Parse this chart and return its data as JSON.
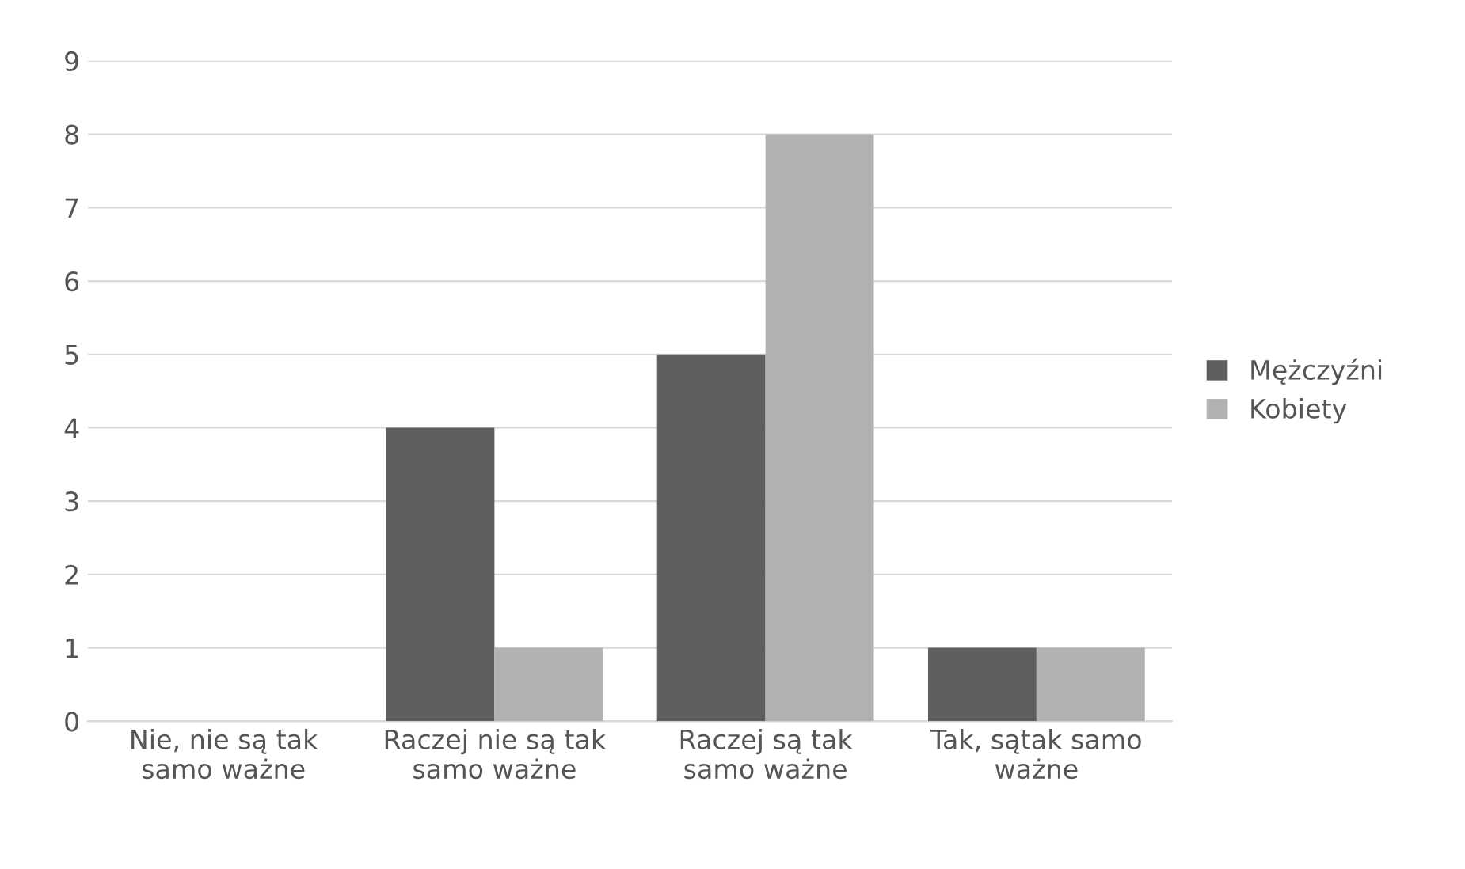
{
  "chart_data": {
    "type": "bar",
    "categories": [
      "Nie, nie są tak\nsamo ważne",
      "Raczej nie są tak\nsamo ważne",
      "Raczej są tak\nsamo ważne",
      "Tak, sątak samo\nważne"
    ],
    "series": [
      {
        "name": "Mężczyźni",
        "color": "#5f5f5f",
        "values": [
          0,
          4,
          5,
          1
        ]
      },
      {
        "name": "Kobiety",
        "color": "#b2b2b2",
        "values": [
          0,
          1,
          8,
          1
        ]
      }
    ],
    "ylim": [
      0,
      9
    ],
    "yticks": [
      0,
      1,
      2,
      3,
      4,
      5,
      6,
      7,
      8,
      9
    ],
    "grid": "y",
    "legend": "right"
  }
}
